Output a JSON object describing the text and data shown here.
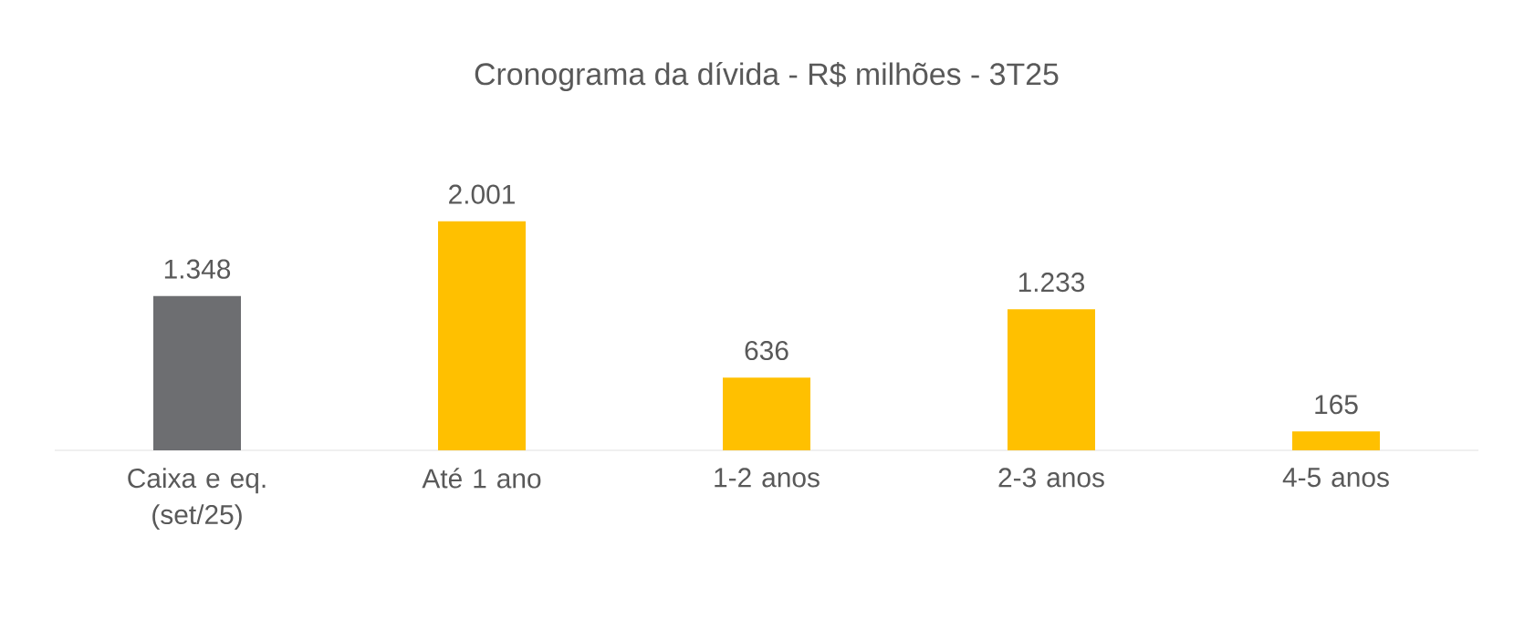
{
  "chart_data": {
    "type": "bar",
    "title": "Cronograma da dívida - R$ milhões - 3T25",
    "categories": [
      "Caixa e eq. (set/25)",
      "Até 1 ano",
      "1-2 anos",
      "2-3 anos",
      "4-5 anos"
    ],
    "values": [
      1348,
      2001,
      636,
      1233,
      165
    ],
    "value_labels": [
      "1.348",
      "2.001",
      "636",
      "1.233",
      "165"
    ],
    "colors": [
      "#6d6e71",
      "#ffc000",
      "#ffc000",
      "#ffc000",
      "#ffc000"
    ]
  }
}
